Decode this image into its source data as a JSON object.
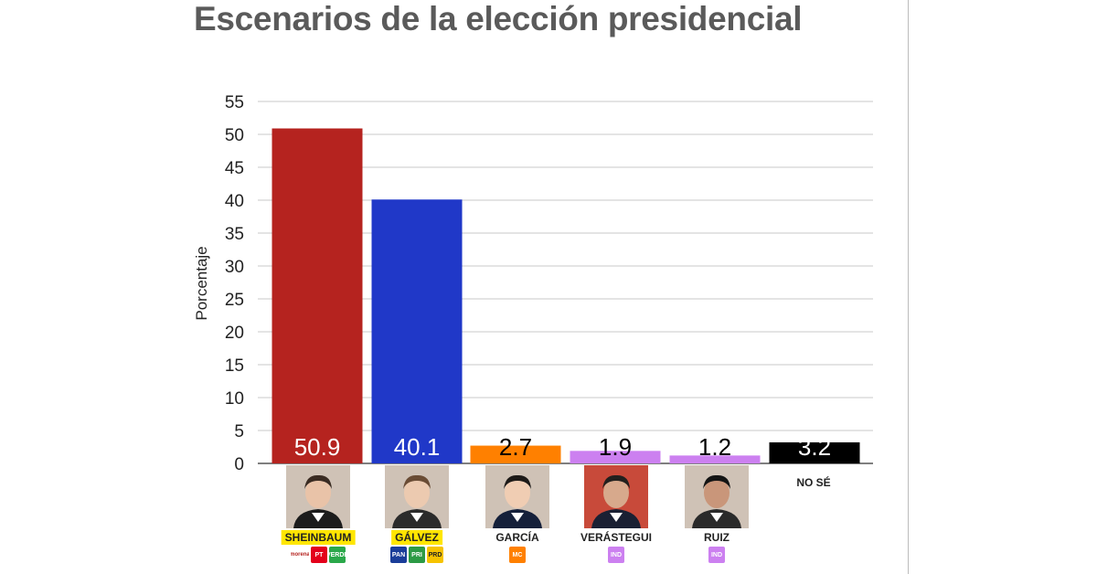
{
  "chart_data": {
    "type": "bar",
    "title": "Escenarios de la elección presidencial",
    "ylabel": "Porcentaje",
    "xlabel": "",
    "ylim": [
      0,
      55
    ],
    "yticks": [
      0,
      5,
      10,
      15,
      20,
      25,
      30,
      35,
      40,
      45,
      50,
      55
    ],
    "grid": true,
    "categories": [
      "SHEINBAUM",
      "GÁLVEZ",
      "GARCÍA",
      "VERÁSTEGUI",
      "RUIZ",
      "NO SÉ"
    ],
    "values": [
      50.9,
      40.1,
      2.7,
      1.9,
      1.2,
      3.2
    ],
    "value_labels": [
      "50.9",
      "40.1",
      "2.7",
      "1.9",
      "1.2",
      "3.2"
    ],
    "colors": [
      "#b5231f",
      "#2038c8",
      "#ff8000",
      "#cc80f0",
      "#cc80f0",
      "#000000"
    ],
    "label_colors": [
      "#ffffff",
      "#ffffff",
      "#000000",
      "#000000",
      "#000000",
      "#ffffff"
    ]
  },
  "candidates": [
    {
      "name": "SHEINBAUM",
      "highlight": true,
      "logos": [
        {
          "icon": "morena-logo-icon",
          "text": "morena",
          "color": "#b5231f"
        },
        {
          "icon": "pt-logo-icon",
          "text": "PT",
          "color": "#e3001b"
        },
        {
          "icon": "verde-logo-icon",
          "text": "VERDE",
          "color": "#2aa84a"
        }
      ]
    },
    {
      "name": "GÁLVEZ",
      "highlight": true,
      "logos": [
        {
          "icon": "pan-logo-icon",
          "text": "PAN",
          "color": "#1a3d99"
        },
        {
          "icon": "pri-logo-icon",
          "text": "PRI",
          "color": "#2c9a45"
        },
        {
          "icon": "prd-logo-icon",
          "text": "PRD",
          "color": "#f6c300"
        }
      ]
    },
    {
      "name": "GARCÍA",
      "highlight": false,
      "logos": [
        {
          "icon": "mc-logo-icon",
          "text": "MC",
          "color": "#ff8000"
        }
      ]
    },
    {
      "name": "VERÁSTEGUI",
      "highlight": false,
      "logos": [
        {
          "icon": "ind-logo-icon",
          "text": "IND",
          "color": "#cc80f0"
        }
      ]
    },
    {
      "name": "RUIZ",
      "highlight": false,
      "logos": [
        {
          "icon": "ind-logo-icon",
          "text": "IND",
          "color": "#cc80f0"
        }
      ]
    }
  ],
  "nose_label": "NO SÉ"
}
